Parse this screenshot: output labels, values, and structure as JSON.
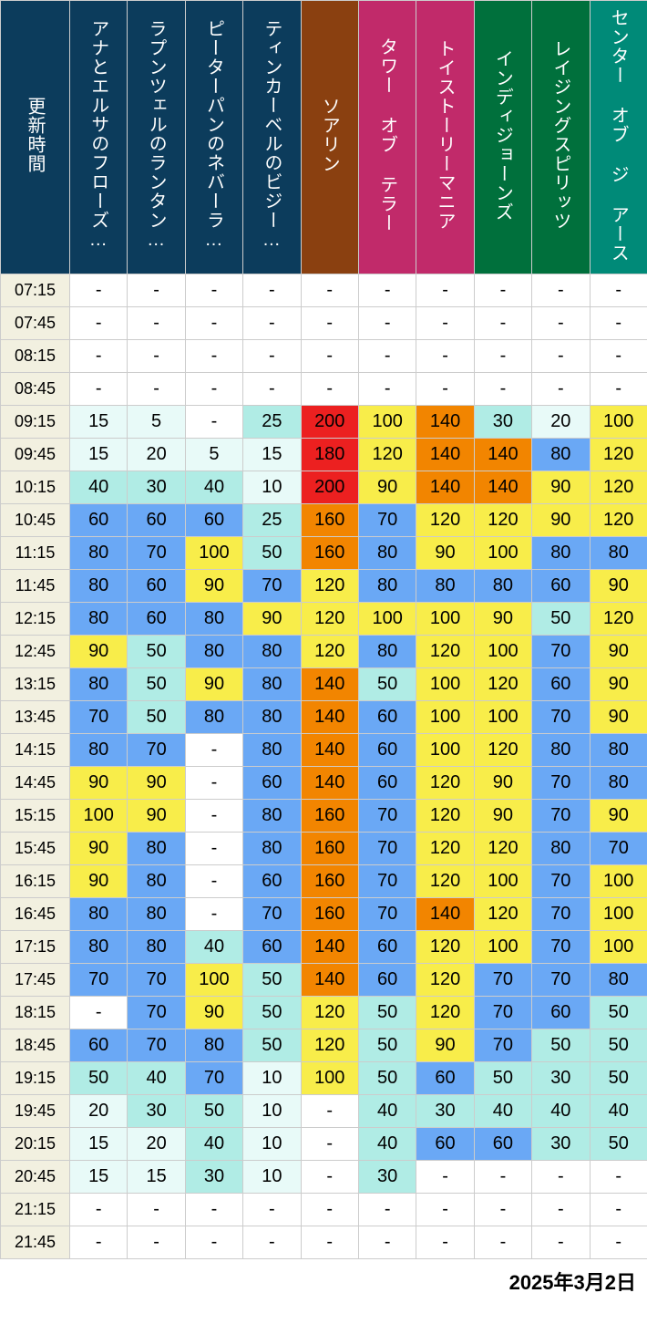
{
  "date_label": "2025年3月2日",
  "time_header": "更新時間",
  "header_colors": {
    "time": "#0c3c5c",
    "group1": "#0c3c5c",
    "soarin": "#8a4010",
    "tower": "#c12a6a",
    "toystory": "#c12a6a",
    "indy": "#00703c",
    "raging": "#00703c",
    "center": "#008a78"
  },
  "attractions": [
    {
      "label": "アナとエルサのフローズ…",
      "color_key": "group1"
    },
    {
      "label": "ラプンツェルのランタン…",
      "color_key": "group1"
    },
    {
      "label": "ピーターパンのネバーラ…",
      "color_key": "group1"
    },
    {
      "label": "ティンカーベルのビジー…",
      "color_key": "group1"
    },
    {
      "label": "ソアリン",
      "color_key": "soarin"
    },
    {
      "label": "タワー オブ テラー",
      "color_key": "tower"
    },
    {
      "label": "トイストーリーマニア",
      "color_key": "toystory"
    },
    {
      "label": "インディジョーンズ",
      "color_key": "indy"
    },
    {
      "label": "レイジングスピリッツ",
      "color_key": "raging"
    },
    {
      "label": "センター オブ ジ アース",
      "color_key": "center"
    }
  ],
  "times": [
    "07:15",
    "07:45",
    "08:15",
    "08:45",
    "09:15",
    "09:45",
    "10:15",
    "10:45",
    "11:15",
    "11:45",
    "12:15",
    "12:45",
    "13:15",
    "13:45",
    "14:15",
    "14:45",
    "15:15",
    "15:45",
    "16:15",
    "16:45",
    "17:15",
    "17:45",
    "18:15",
    "18:45",
    "19:15",
    "19:45",
    "20:15",
    "20:45",
    "21:15",
    "21:45"
  ],
  "time_bg": "#f2f0e0",
  "cell_colors": {
    "none": "#ffffff",
    "t5": "#e8faf8",
    "t10": "#e8faf8",
    "t15": "#e8faf8",
    "t20": "#e8faf8",
    "t25": "#b0ece5",
    "t30": "#b0ece5",
    "t40": "#b0ece5",
    "t50": "#b0ece5",
    "t60": "#6aa8f5",
    "t70": "#6aa8f5",
    "t80": "#6aa8f5",
    "t90": "#f8ed4a",
    "t100": "#f8ed4a",
    "t120": "#f8ed4a",
    "t140": "#f28500",
    "t160": "#f28500",
    "t180": "#ec2020",
    "t200": "#ec2020"
  },
  "data": [
    [
      "-",
      "-",
      "-",
      "-",
      "-",
      "-",
      "-",
      "-",
      "-",
      "-"
    ],
    [
      "-",
      "-",
      "-",
      "-",
      "-",
      "-",
      "-",
      "-",
      "-",
      "-"
    ],
    [
      "-",
      "-",
      "-",
      "-",
      "-",
      "-",
      "-",
      "-",
      "-",
      "-"
    ],
    [
      "-",
      "-",
      "-",
      "-",
      "-",
      "-",
      "-",
      "-",
      "-",
      "-"
    ],
    [
      15,
      5,
      "-",
      25,
      200,
      100,
      140,
      30,
      20,
      100
    ],
    [
      15,
      20,
      5,
      15,
      180,
      120,
      140,
      140,
      80,
      120
    ],
    [
      40,
      30,
      40,
      10,
      200,
      90,
      140,
      140,
      90,
      120
    ],
    [
      60,
      60,
      60,
      25,
      160,
      70,
      120,
      120,
      90,
      120
    ],
    [
      80,
      70,
      100,
      50,
      160,
      80,
      90,
      100,
      80,
      80
    ],
    [
      80,
      60,
      90,
      70,
      120,
      80,
      80,
      80,
      60,
      90
    ],
    [
      80,
      60,
      80,
      90,
      120,
      100,
      100,
      90,
      50,
      120
    ],
    [
      90,
      50,
      80,
      80,
      120,
      80,
      120,
      100,
      70,
      90
    ],
    [
      80,
      50,
      90,
      80,
      140,
      50,
      100,
      120,
      60,
      90
    ],
    [
      70,
      50,
      80,
      80,
      140,
      60,
      100,
      100,
      70,
      90
    ],
    [
      80,
      70,
      "-",
      80,
      140,
      60,
      100,
      120,
      80,
      80
    ],
    [
      90,
      90,
      "-",
      60,
      140,
      60,
      120,
      90,
      70,
      80
    ],
    [
      100,
      90,
      "-",
      80,
      160,
      70,
      120,
      90,
      70,
      90
    ],
    [
      90,
      80,
      "-",
      80,
      160,
      70,
      120,
      120,
      80,
      70
    ],
    [
      90,
      80,
      "-",
      60,
      160,
      70,
      120,
      100,
      70,
      100
    ],
    [
      80,
      80,
      "-",
      70,
      160,
      70,
      140,
      120,
      70,
      100
    ],
    [
      80,
      80,
      40,
      60,
      140,
      60,
      120,
      100,
      70,
      100
    ],
    [
      70,
      70,
      100,
      50,
      140,
      60,
      120,
      70,
      70,
      80
    ],
    [
      "-",
      70,
      90,
      50,
      120,
      50,
      120,
      70,
      60,
      50
    ],
    [
      60,
      70,
      80,
      50,
      120,
      50,
      90,
      70,
      50,
      50
    ],
    [
      50,
      40,
      70,
      10,
      100,
      50,
      60,
      50,
      30,
      50
    ],
    [
      20,
      30,
      50,
      10,
      "-",
      40,
      30,
      40,
      40,
      40
    ],
    [
      15,
      20,
      40,
      10,
      "-",
      40,
      60,
      60,
      30,
      50
    ],
    [
      15,
      15,
      30,
      10,
      "-",
      30,
      "-",
      "-",
      "-",
      "-"
    ],
    [
      "-",
      "-",
      "-",
      "-",
      "-",
      "-",
      "-",
      "-",
      "-",
      "-"
    ],
    [
      "-",
      "-",
      "-",
      "-",
      "-",
      "-",
      "-",
      "-",
      "-",
      "-"
    ]
  ]
}
